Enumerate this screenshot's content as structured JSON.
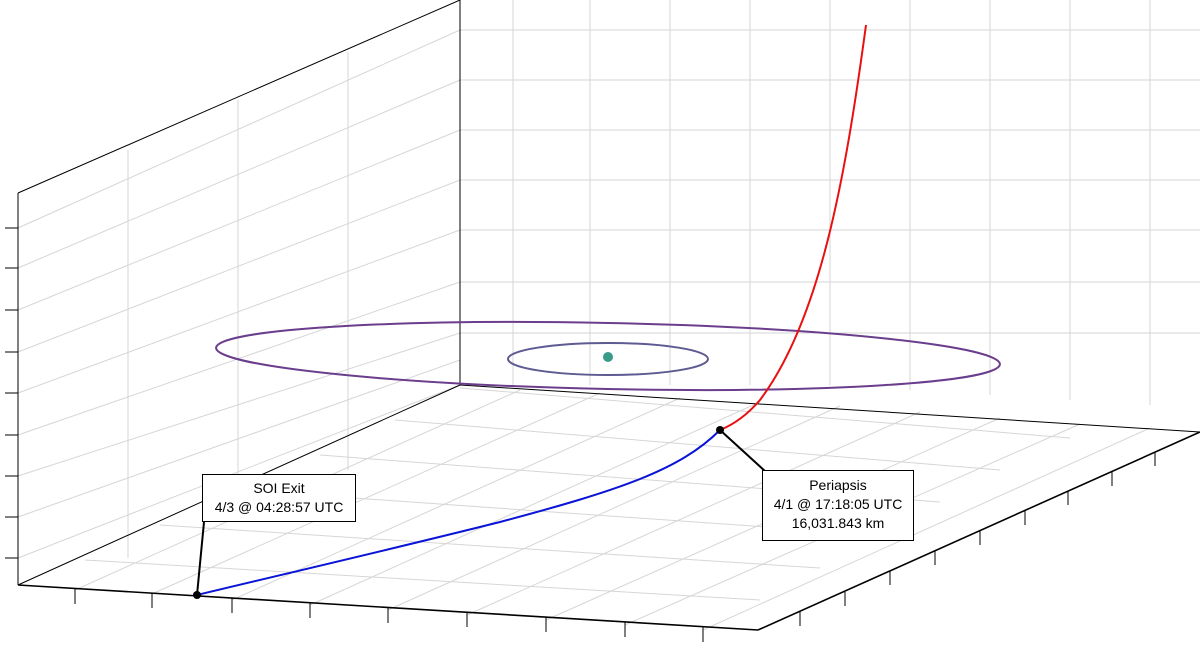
{
  "colors": {
    "inbound_trajectory": "#e81010",
    "outbound_trajectory": "#0a14d6",
    "outer_orbit": "#6a3e8c",
    "inner_orbit": "#5e5a92",
    "central_body": "#3a9a8a",
    "grid": "#d4d4d4",
    "axes": "#000000"
  },
  "markers": {
    "soi_exit": {
      "title": "SOI Exit",
      "time": "4/3 @ 04:28:57 UTC"
    },
    "periapsis": {
      "title": "Periapsis",
      "time": "4/1 @ 17:18:05 UTC",
      "altitude": "16,031.843 km"
    }
  },
  "grid": {
    "visible": true,
    "tick_labels": false
  }
}
